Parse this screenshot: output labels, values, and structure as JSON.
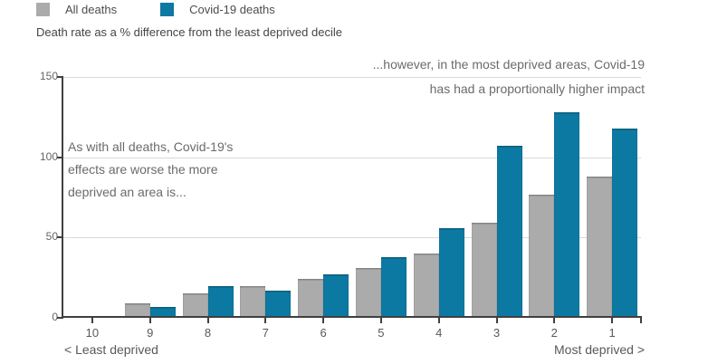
{
  "subtitle": "Death rate as a % difference from the least deprived decile",
  "annotations": {
    "right_line1": "...however, in the most deprived areas, Covid-19",
    "right_line2": "has had a proportionally higher impact",
    "left_lines": [
      "As with all deaths, Covid-19's",
      "effects are worse the more",
      "deprived an area is..."
    ]
  },
  "colors": {
    "all_deaths_bar": "#ababab",
    "covid_deaths_bar": "#0c79a2",
    "axis": "#404040",
    "gridline": "#d9d9d9",
    "tick_label": "#666666",
    "annotation_text": "#6b6b6b"
  },
  "chart_data": {
    "type": "bar",
    "title": "",
    "subtitle": "Death rate as a % difference from the least deprived decile",
    "categories": [
      "10",
      "9",
      "8",
      "7",
      "6",
      "5",
      "4",
      "3",
      "2",
      "1"
    ],
    "series": [
      {
        "name": "All deaths",
        "color": "#ababab",
        "values": [
          0,
          9,
          15,
          20,
          24,
          31,
          40,
          59,
          77,
          88
        ]
      },
      {
        "name": "Covid-19 deaths",
        "color": "#0c79a2",
        "values": [
          0,
          7,
          20,
          17,
          27,
          38,
          56,
          107,
          128,
          118
        ]
      }
    ],
    "xlabel": "",
    "ylabel": "",
    "ylim": [
      0,
      150
    ],
    "yticks": [
      0,
      50,
      100,
      150
    ],
    "grid": true,
    "legend_position": "top",
    "xlabel_left": "< Least deprived",
    "xlabel_right": "Most deprived >"
  }
}
